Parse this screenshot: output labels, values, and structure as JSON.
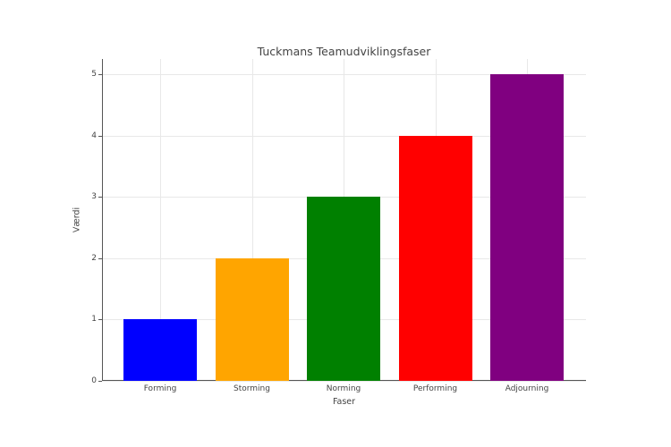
{
  "chart_data": {
    "type": "bar",
    "title": "Tuckmans Teamudviklingsfaser",
    "xlabel": "Faser",
    "ylabel": "Værdi",
    "categories": [
      "Forming",
      "Storming",
      "Norming",
      "Performing",
      "Adjourning"
    ],
    "values": [
      1,
      2,
      3,
      4,
      5
    ],
    "colors": [
      "#0000ff",
      "#ffa500",
      "#008000",
      "#ff0000",
      "#800080"
    ],
    "ylim": [
      0,
      5.25
    ],
    "yticks": [
      "0",
      "1",
      "2",
      "3",
      "4",
      "5"
    ],
    "grid": true,
    "legend": null
  }
}
